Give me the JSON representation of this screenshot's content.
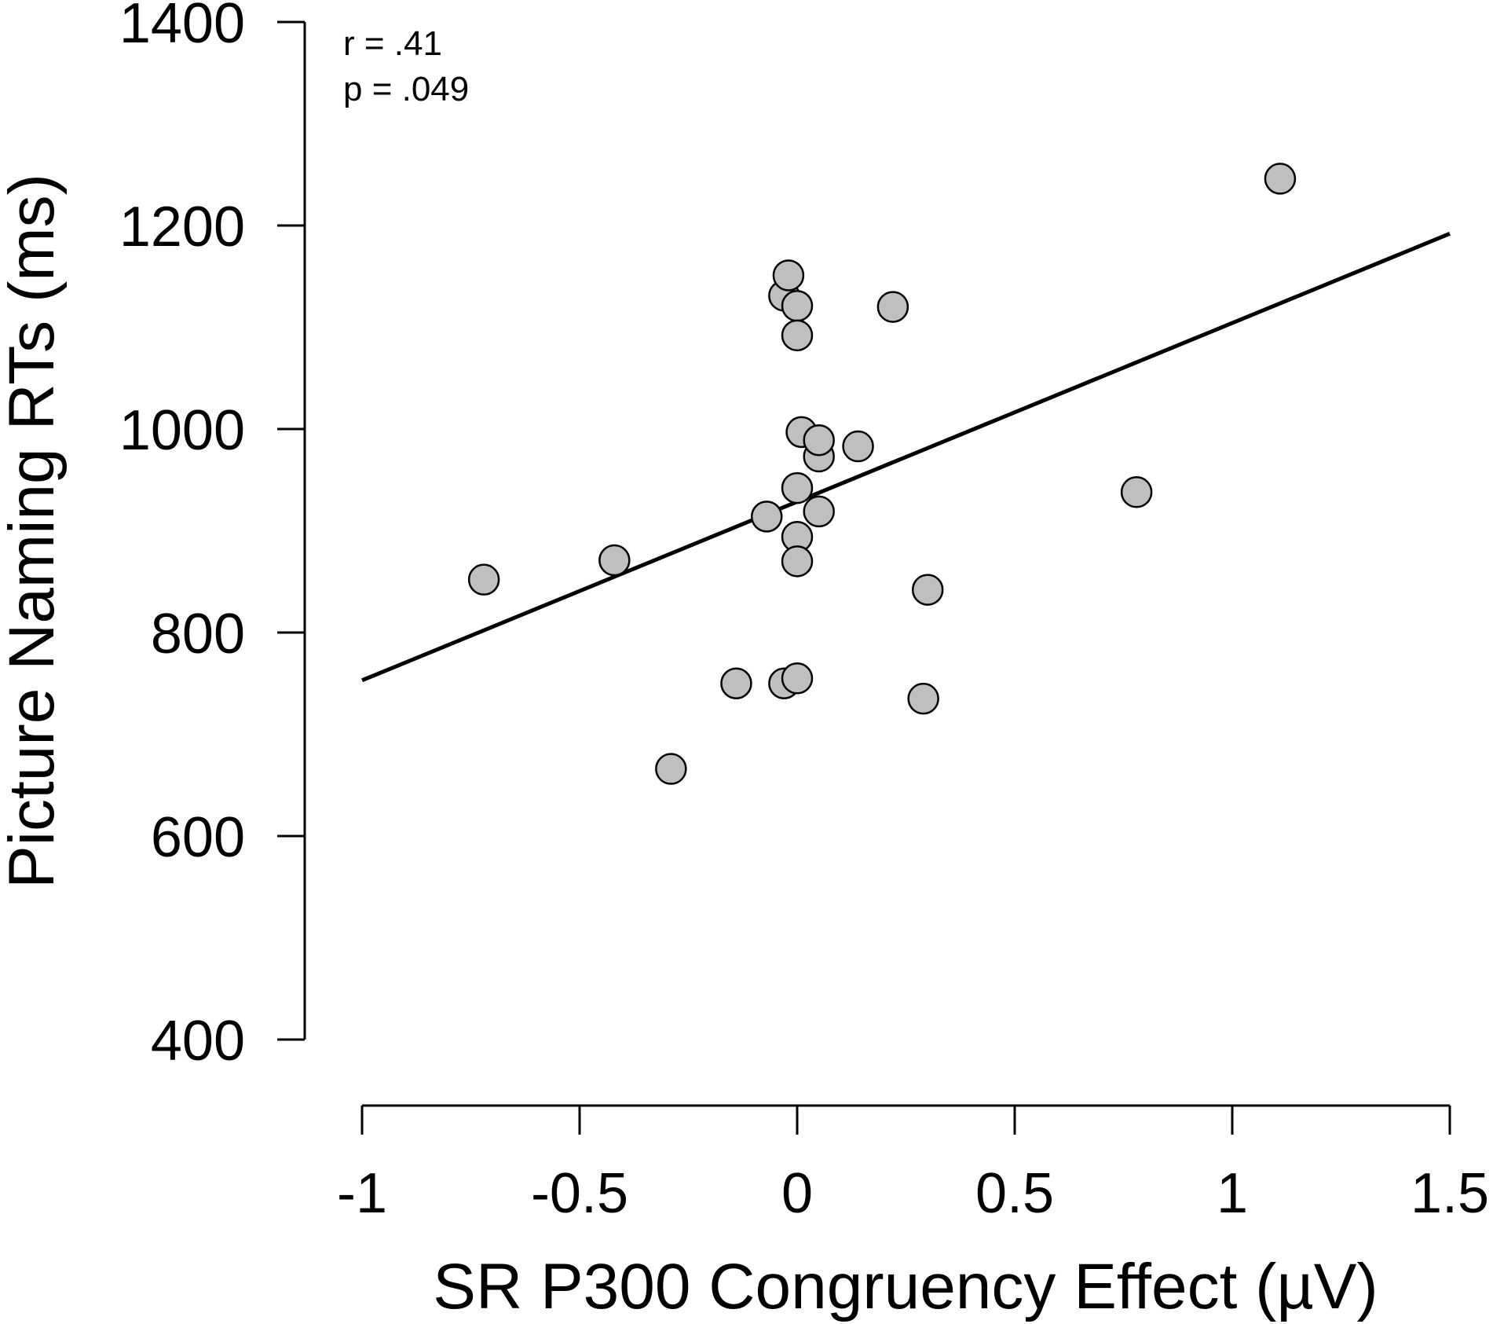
{
  "chart_data": {
    "type": "scatter",
    "title": "",
    "xlabel": "SR P300 Congruency Effect (µV)",
    "ylabel": "Picture Naming RTs (ms)",
    "xlim": [
      -1,
      1.5
    ],
    "ylim": [
      400,
      1400
    ],
    "xticks": [
      "-1",
      "-0.5",
      "0",
      "0.5",
      "1",
      "1.5"
    ],
    "yticks": [
      "400",
      "600",
      "800",
      "1000",
      "1200",
      "1400"
    ],
    "annotations": [
      "r = .41",
      "p = .049"
    ],
    "grid": false,
    "legend": "none",
    "point_color": "#bfbfbf",
    "line_color": "#000000",
    "points": [
      {
        "x": -0.72,
        "y": 852
      },
      {
        "x": -0.42,
        "y": 871
      },
      {
        "x": -0.29,
        "y": 666
      },
      {
        "x": -0.14,
        "y": 750
      },
      {
        "x": -0.07,
        "y": 914
      },
      {
        "x": -0.03,
        "y": 1131
      },
      {
        "x": -0.02,
        "y": 1151
      },
      {
        "x": -0.03,
        "y": 750
      },
      {
        "x": 0.0,
        "y": 1121
      },
      {
        "x": 0.0,
        "y": 1092
      },
      {
        "x": 0.01,
        "y": 997
      },
      {
        "x": 0.0,
        "y": 942
      },
      {
        "x": 0.0,
        "y": 894
      },
      {
        "x": 0.0,
        "y": 870
      },
      {
        "x": 0.0,
        "y": 755
      },
      {
        "x": 0.05,
        "y": 973
      },
      {
        "x": 0.05,
        "y": 989
      },
      {
        "x": 0.05,
        "y": 919
      },
      {
        "x": 0.14,
        "y": 983
      },
      {
        "x": 0.22,
        "y": 1120
      },
      {
        "x": 0.29,
        "y": 735
      },
      {
        "x": 0.3,
        "y": 842
      },
      {
        "x": 0.78,
        "y": 938
      },
      {
        "x": 1.11,
        "y": 1246
      }
    ],
    "fit_line": {
      "x": [
        -1,
        1.5
      ],
      "y": [
        753,
        1192
      ]
    }
  }
}
